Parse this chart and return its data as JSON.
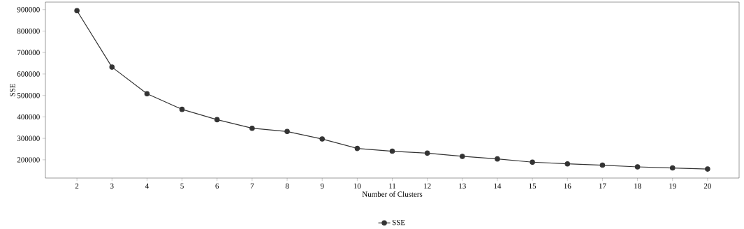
{
  "chart_data": {
    "type": "line",
    "xlabel": "Number of Clusters",
    "ylabel": "SSE",
    "x": [
      2,
      3,
      4,
      5,
      6,
      7,
      8,
      9,
      10,
      11,
      12,
      13,
      14,
      15,
      16,
      17,
      18,
      19,
      20
    ],
    "series": [
      {
        "name": "SSE",
        "color": "#333333",
        "values": [
          895000,
          632000,
          508000,
          435000,
          387000,
          347000,
          332000,
          297000,
          253000,
          240000,
          231000,
          216000,
          204000,
          189000,
          181000,
          175000,
          167000,
          162000,
          157000
        ]
      }
    ],
    "xlim": [
      1.1,
      20.9
    ],
    "ylim": [
      115000,
      935000
    ],
    "xticks": [
      2,
      3,
      4,
      5,
      6,
      7,
      8,
      9,
      10,
      11,
      12,
      13,
      14,
      15,
      16,
      17,
      18,
      19,
      20
    ],
    "yticks": [
      200000,
      300000,
      400000,
      500000,
      600000,
      700000,
      800000,
      900000
    ],
    "grid": false,
    "legend": "bottom",
    "marker": "circle",
    "line_style": "solid"
  }
}
